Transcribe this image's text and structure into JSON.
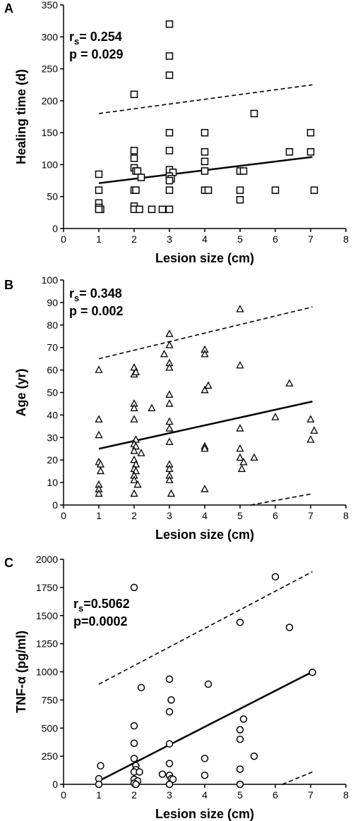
{
  "chart_data": [
    {
      "type": "scatter",
      "panel_label": "A",
      "xlabel": "Lesion size (cm)",
      "ylabel": "Healing time  (d)",
      "xlim": [
        0,
        8
      ],
      "ylim": [
        0,
        350
      ],
      "xticks": [
        0,
        1,
        2,
        3,
        4,
        5,
        6,
        7,
        8
      ],
      "yticks": [
        0,
        50,
        100,
        150,
        200,
        250,
        300,
        350
      ],
      "marker": "square",
      "annotations": {
        "r_prefix": "r",
        "r_sub": "s",
        "r_value": "= 0.254",
        "p_text": "p = 0.029"
      },
      "points": [
        [
          1.0,
          85
        ],
        [
          1.0,
          60
        ],
        [
          1.0,
          40
        ],
        [
          1.0,
          33
        ],
        [
          1.05,
          30
        ],
        [
          1.0,
          30
        ],
        [
          2.0,
          210
        ],
        [
          2.0,
          122
        ],
        [
          2.0,
          110
        ],
        [
          2.0,
          95
        ],
        [
          2.05,
          90
        ],
        [
          2.1,
          90
        ],
        [
          2.2,
          80
        ],
        [
          2.0,
          60
        ],
        [
          2.05,
          60
        ],
        [
          2.0,
          35
        ],
        [
          2.0,
          30
        ],
        [
          2.15,
          30
        ],
        [
          2.5,
          30
        ],
        [
          2.8,
          30
        ],
        [
          3.0,
          320
        ],
        [
          3.0,
          270
        ],
        [
          3.0,
          240
        ],
        [
          3.0,
          150
        ],
        [
          3.0,
          122
        ],
        [
          3.0,
          92
        ],
        [
          3.1,
          88
        ],
        [
          3.0,
          82
        ],
        [
          3.05,
          78
        ],
        [
          3.0,
          75
        ],
        [
          3.0,
          60
        ],
        [
          3.0,
          30
        ],
        [
          4.0,
          150
        ],
        [
          4.0,
          120
        ],
        [
          4.0,
          105
        ],
        [
          4.0,
          90
        ],
        [
          4.0,
          60
        ],
        [
          4.1,
          60
        ],
        [
          5.0,
          90
        ],
        [
          5.1,
          90
        ],
        [
          5.0,
          60
        ],
        [
          5.0,
          45
        ],
        [
          5.4,
          180
        ],
        [
          6.0,
          60
        ],
        [
          6.4,
          120
        ],
        [
          7.0,
          150
        ],
        [
          7.0,
          120
        ],
        [
          7.1,
          60
        ]
      ],
      "fit_line": [
        [
          1.0,
          71
        ],
        [
          7.05,
          112
        ]
      ],
      "band_upper": [
        [
          1.0,
          180
        ],
        [
          7.05,
          225
        ]
      ],
      "band_lower": []
    },
    {
      "type": "scatter",
      "panel_label": "B",
      "xlabel": "Lesion size (cm)",
      "ylabel": "Age (yr)",
      "xlim": [
        0,
        8
      ],
      "ylim": [
        0,
        100
      ],
      "xticks": [
        0,
        1,
        2,
        3,
        4,
        5,
        6,
        7,
        8
      ],
      "yticks": [
        0,
        10,
        20,
        30,
        40,
        50,
        60,
        70,
        80,
        90,
        100
      ],
      "marker": "triangle",
      "annotations": {
        "r_prefix": "r",
        "r_sub": "s",
        "r_value": "= 0.348",
        "p_text": "p = 0.002"
      },
      "points": [
        [
          1.0,
          60
        ],
        [
          1.0,
          38
        ],
        [
          1.0,
          31
        ],
        [
          1.0,
          19
        ],
        [
          1.05,
          18
        ],
        [
          1.05,
          15
        ],
        [
          1.0,
          9
        ],
        [
          1.0,
          7
        ],
        [
          1.0,
          5
        ],
        [
          2.0,
          61
        ],
        [
          2.0,
          58
        ],
        [
          2.05,
          59
        ],
        [
          2.0,
          45
        ],
        [
          2.0,
          43
        ],
        [
          2.0,
          38
        ],
        [
          2.05,
          29
        ],
        [
          2.0,
          27
        ],
        [
          2.05,
          26
        ],
        [
          2.0,
          24
        ],
        [
          2.0,
          20
        ],
        [
          2.05,
          18
        ],
        [
          2.0,
          16
        ],
        [
          2.05,
          15
        ],
        [
          2.0,
          13
        ],
        [
          2.0,
          11
        ],
        [
          2.1,
          9
        ],
        [
          2.0,
          5
        ],
        [
          2.2,
          23
        ],
        [
          2.5,
          43
        ],
        [
          3.0,
          76
        ],
        [
          3.0,
          71
        ],
        [
          2.85,
          67
        ],
        [
          3.0,
          63
        ],
        [
          3.0,
          61
        ],
        [
          3.0,
          49
        ],
        [
          3.0,
          45
        ],
        [
          3.0,
          37
        ],
        [
          3.0,
          34
        ],
        [
          3.0,
          28
        ],
        [
          3.0,
          18
        ],
        [
          3.0,
          16
        ],
        [
          3.0,
          13
        ],
        [
          3.0,
          11
        ],
        [
          3.05,
          5
        ],
        [
          4.0,
          69
        ],
        [
          4.0,
          67
        ],
        [
          4.0,
          51
        ],
        [
          4.1,
          53
        ],
        [
          4.0,
          26
        ],
        [
          4.0,
          25
        ],
        [
          4.0,
          7
        ],
        [
          5.0,
          87
        ],
        [
          5.0,
          62
        ],
        [
          5.0,
          34
        ],
        [
          5.0,
          25
        ],
        [
          5.0,
          21
        ],
        [
          5.05,
          16
        ],
        [
          5.1,
          19
        ],
        [
          5.4,
          21
        ],
        [
          6.0,
          39
        ],
        [
          6.4,
          54
        ],
        [
          7.0,
          38
        ],
        [
          7.1,
          33
        ],
        [
          7.0,
          29
        ]
      ],
      "fit_line": [
        [
          1.0,
          25
        ],
        [
          7.05,
          46
        ]
      ],
      "band_upper": [
        [
          1.0,
          65
        ],
        [
          7.05,
          88
        ]
      ],
      "band_lower": [
        [
          5.3,
          0
        ],
        [
          7.05,
          5
        ]
      ]
    },
    {
      "type": "scatter",
      "panel_label": "C",
      "xlabel": "Lesion size (cm)",
      "ylabel": "TNF-α (pg/ml)",
      "xlim": [
        0,
        8
      ],
      "ylim": [
        0,
        2000
      ],
      "xticks": [
        0,
        1,
        2,
        3,
        4,
        5,
        6,
        7,
        8
      ],
      "yticks": [
        0,
        250,
        500,
        750,
        1000,
        1250,
        1500,
        1750,
        2000
      ],
      "marker": "circle",
      "annotations": {
        "r_prefix": "r",
        "r_sub": "s",
        "r_value": "=0.5062",
        "p_text": "p=0.0002"
      },
      "points": [
        [
          1.05,
          165
        ],
        [
          1.0,
          50
        ],
        [
          1.0,
          0
        ],
        [
          2.0,
          1750
        ],
        [
          2.0,
          520
        ],
        [
          2.0,
          365
        ],
        [
          2.0,
          230
        ],
        [
          2.05,
          165
        ],
        [
          2.05,
          130
        ],
        [
          2.0,
          110
        ],
        [
          2.15,
          110
        ],
        [
          2.0,
          45
        ],
        [
          2.1,
          30
        ],
        [
          2.0,
          10
        ],
        [
          2.05,
          0
        ],
        [
          2.2,
          860
        ],
        [
          2.8,
          90
        ],
        [
          3.0,
          935
        ],
        [
          3.05,
          750
        ],
        [
          3.0,
          645
        ],
        [
          3.0,
          360
        ],
        [
          3.0,
          185
        ],
        [
          3.0,
          80
        ],
        [
          3.05,
          50
        ],
        [
          3.1,
          45
        ],
        [
          3.0,
          0
        ],
        [
          4.0,
          230
        ],
        [
          4.0,
          80
        ],
        [
          4.1,
          890
        ],
        [
          5.0,
          1440
        ],
        [
          5.0,
          485
        ],
        [
          5.1,
          580
        ],
        [
          5.0,
          400
        ],
        [
          5.0,
          135
        ],
        [
          5.0,
          0
        ],
        [
          5.4,
          250
        ],
        [
          6.0,
          1845
        ],
        [
          6.4,
          1395
        ],
        [
          7.05,
          995
        ]
      ],
      "fit_line": [
        [
          1.0,
          30
        ],
        [
          7.05,
          1000
        ]
      ],
      "band_upper": [
        [
          1.0,
          890
        ],
        [
          7.05,
          1890
        ]
      ],
      "band_lower": [
        [
          6.2,
          0
        ],
        [
          7.05,
          110
        ]
      ]
    }
  ]
}
